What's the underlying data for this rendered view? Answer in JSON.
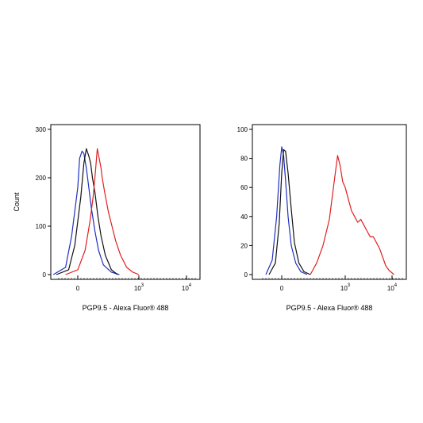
{
  "chart_data": [
    {
      "type": "line",
      "title": "",
      "xlabel": "PGP9.5 - Alexa Fluor® 488",
      "ylabel": "Count",
      "ylim": [
        0,
        300
      ],
      "yticks": [
        0,
        100,
        200,
        300
      ],
      "xticks": [
        {
          "base": "0",
          "exp": ""
        },
        {
          "base": "10",
          "exp": "3"
        },
        {
          "base": "10",
          "exp": "4"
        }
      ],
      "x_scale": "biexponential",
      "series": [
        {
          "color": "#1f2fbf",
          "x": [
            -0.4,
            -0.2,
            -0.1,
            0.0,
            0.03,
            0.07,
            0.1,
            0.14,
            0.18,
            0.22,
            0.28,
            0.34,
            0.42,
            0.55,
            0.68
          ],
          "y": [
            0,
            15,
            80,
            180,
            240,
            255,
            250,
            220,
            180,
            140,
            90,
            50,
            20,
            5,
            0
          ]
        },
        {
          "color": "#111111",
          "x": [
            -0.35,
            -0.15,
            -0.05,
            0.05,
            0.1,
            0.14,
            0.18,
            0.21,
            0.24,
            0.28,
            0.33,
            0.38,
            0.45,
            0.55,
            0.65
          ],
          "y": [
            0,
            10,
            60,
            160,
            230,
            260,
            245,
            230,
            200,
            170,
            120,
            80,
            40,
            10,
            0
          ]
        },
        {
          "color": "#e02020",
          "x": [
            -0.2,
            0.0,
            0.12,
            0.2,
            0.25,
            0.28,
            0.32,
            0.35,
            0.38,
            0.4,
            0.44,
            0.5,
            0.56,
            0.62,
            0.7,
            0.8,
            0.9,
            1.0
          ],
          "y": [
            0,
            10,
            50,
            110,
            160,
            200,
            260,
            240,
            220,
            200,
            170,
            130,
            100,
            70,
            40,
            15,
            5,
            0
          ]
        }
      ]
    },
    {
      "type": "line",
      "title": "",
      "xlabel": "PGP9.5 - Alexa Fluor® 488",
      "ylabel": "",
      "ylim": [
        0,
        100
      ],
      "yticks": [
        0,
        20,
        40,
        60,
        80,
        100
      ],
      "xticks": [
        {
          "base": "0",
          "exp": ""
        },
        {
          "base": "10",
          "exp": "3"
        },
        {
          "base": "10",
          "exp": "4"
        }
      ],
      "x_scale": "biexponential",
      "series": [
        {
          "color": "#1f2fbf",
          "x": [
            -0.25,
            -0.15,
            -0.08,
            -0.03,
            0.0,
            0.03,
            0.06,
            0.1,
            0.15,
            0.22,
            0.3,
            0.4
          ],
          "y": [
            0,
            10,
            40,
            75,
            88,
            82,
            65,
            40,
            20,
            8,
            2,
            0
          ]
        },
        {
          "color": "#111111",
          "x": [
            -0.2,
            -0.1,
            -0.04,
            0.0,
            0.03,
            0.06,
            0.1,
            0.15,
            0.2,
            0.27,
            0.35,
            0.45
          ],
          "y": [
            0,
            8,
            35,
            70,
            86,
            85,
            70,
            45,
            22,
            8,
            2,
            0
          ]
        },
        {
          "color": "#e02020",
          "x": [
            0.45,
            0.55,
            0.65,
            0.75,
            0.8,
            0.85,
            0.88,
            0.92,
            0.96,
            1.0,
            1.05,
            1.1,
            1.15,
            1.2,
            1.25,
            1.3,
            1.35,
            1.4,
            1.45,
            1.5,
            1.55,
            1.6,
            1.65,
            1.7,
            1.78
          ],
          "y": [
            0,
            8,
            20,
            38,
            55,
            72,
            82,
            75,
            64,
            60,
            52,
            44,
            40,
            36,
            38,
            34,
            30,
            26,
            26,
            22,
            18,
            12,
            6,
            3,
            0
          ]
        }
      ]
    }
  ]
}
